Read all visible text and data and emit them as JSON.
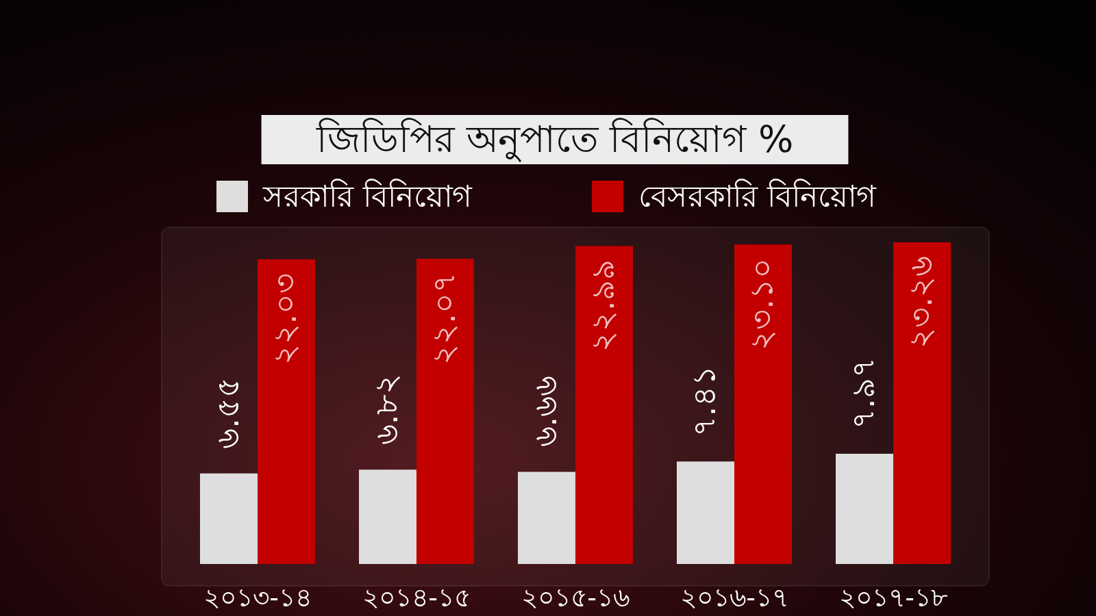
{
  "chart_data": {
    "type": "bar",
    "title": "জিডিপির অনুপাতে বিনিয়োগ %",
    "legend": "top",
    "categories": [
      "২০১৩-১৪",
      "২০১৪-১৫",
      "২০১৫-১৬",
      "২০১৬-১৭",
      "২০১৭-১৮"
    ],
    "series": [
      {
        "name": "সরকারি বিনিয়োগ",
        "color": "#dedede",
        "values": [
          6.55,
          6.82,
          6.66,
          7.41,
          7.97
        ],
        "value_labels": [
          "৬.৫৫",
          "৬.৮২",
          "৬.৬৬",
          "৭.৪১",
          "৭.৯৭"
        ]
      },
      {
        "name": "বেসরকারি বিনিয়োগ",
        "color": "#c20000",
        "values": [
          22.03,
          22.07,
          22.99,
          23.1,
          23.26
        ],
        "value_labels": [
          "২২.০৩",
          "২২.০৭",
          "২২.৯৯",
          "২৩.১০",
          "২৩.২৬"
        ]
      }
    ]
  }
}
